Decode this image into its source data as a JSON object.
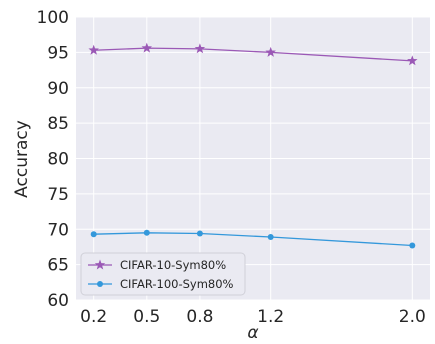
{
  "chart_data": {
    "type": "line",
    "title": "",
    "xlabel": "α",
    "ylabel": "Accuracy",
    "x": [
      0.2,
      0.5,
      0.8,
      1.2,
      2.0
    ],
    "x_tick_labels": [
      "0.2",
      "0.5",
      "0.8",
      "1.2",
      "2.0"
    ],
    "y_ticks": [
      60,
      65,
      70,
      75,
      80,
      85,
      90,
      95,
      100
    ],
    "y_tick_labels": [
      "60",
      "65",
      "70",
      "75",
      "80",
      "85",
      "90",
      "95",
      "100"
    ],
    "xlim": [
      0.1,
      2.1
    ],
    "ylim": [
      60,
      100
    ],
    "grid": true,
    "legend_position": "lower-left",
    "series": [
      {
        "name": "CIFAR-10-Sym80%",
        "color": "#9b59b6",
        "marker": "star",
        "values": [
          95.3,
          95.6,
          95.5,
          95.0,
          93.8
        ]
      },
      {
        "name": "CIFAR-100-Sym80%",
        "color": "#3498db",
        "marker": "circle",
        "values": [
          69.3,
          69.5,
          69.4,
          68.9,
          67.7
        ]
      }
    ]
  }
}
